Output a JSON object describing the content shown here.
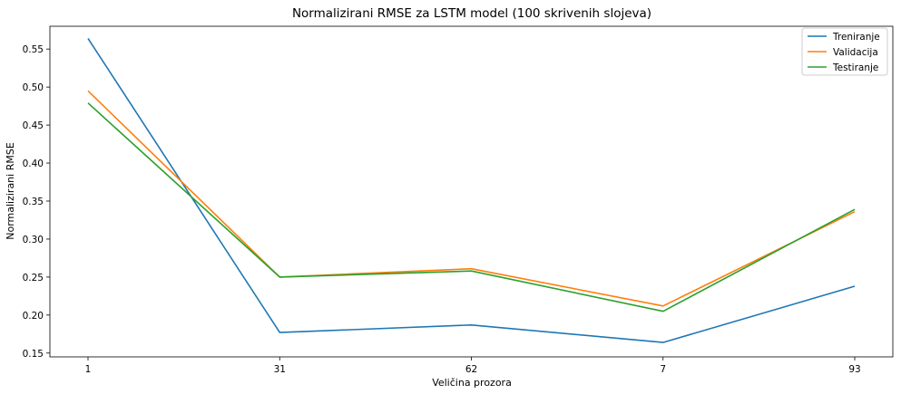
{
  "chart_data": {
    "type": "line",
    "title": "Normalizirani RMSE za LSTM model (100 skrivenih slojeva)",
    "xlabel": "Veličina prozora",
    "ylabel": "Normalizirani RMSE",
    "categories": [
      "1",
      "31",
      "62",
      "7",
      "93"
    ],
    "ylim": [
      0.145,
      0.58
    ],
    "yticks": [
      "0.15",
      "0.20",
      "0.25",
      "0.30",
      "0.35",
      "0.40",
      "0.45",
      "0.50",
      "0.55"
    ],
    "grid": false,
    "legend_position": "top-right",
    "series": [
      {
        "name": "Treniranje",
        "color": "#1f77b4",
        "values": [
          0.564,
          0.177,
          0.187,
          0.164,
          0.238
        ]
      },
      {
        "name": "Validacija",
        "color": "#ff7f0e",
        "values": [
          0.495,
          0.25,
          0.261,
          0.212,
          0.336
        ]
      },
      {
        "name": "Testiranje",
        "color": "#2ca02c",
        "values": [
          0.479,
          0.25,
          0.258,
          0.205,
          0.339
        ]
      }
    ]
  }
}
